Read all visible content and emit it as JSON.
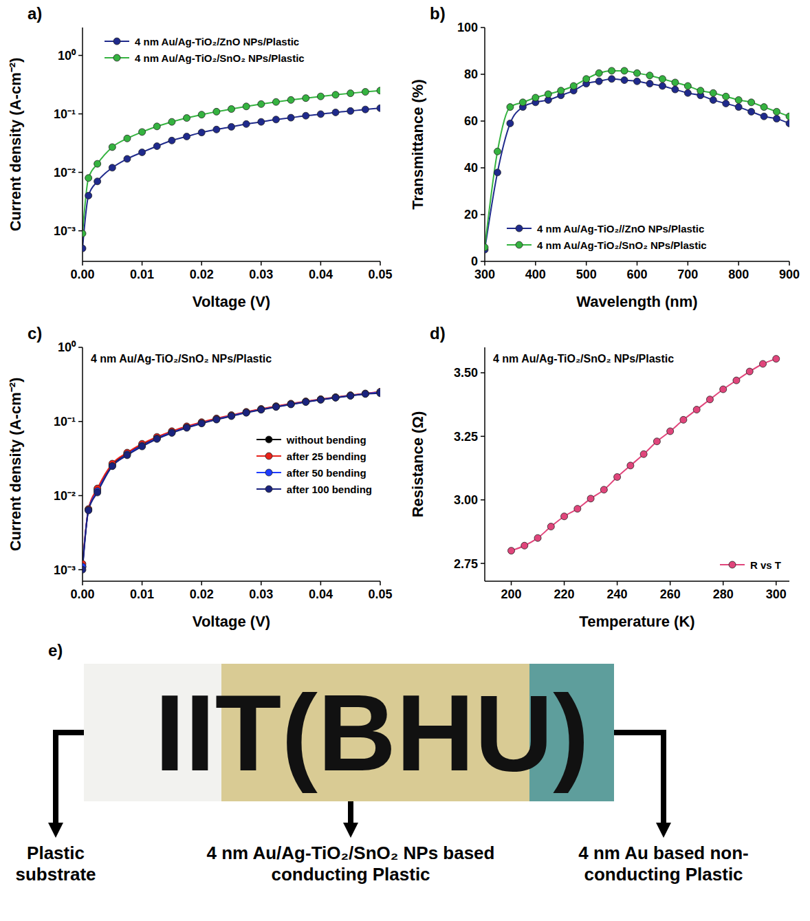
{
  "chart_data": [
    {
      "type": "line",
      "title": "a)",
      "xlabel": "Voltage (V)",
      "ylabel": "Current density (A-cm⁻²)",
      "log": "y",
      "legend": "upper left",
      "x": [
        0,
        0.001,
        0.0025,
        0.005,
        0.0075,
        0.01,
        0.0125,
        0.015,
        0.0175,
        0.02,
        0.0225,
        0.025,
        0.0275,
        0.03,
        0.0325,
        0.035,
        0.0375,
        0.04,
        0.0425,
        0.045,
        0.0475,
        0.05
      ],
      "series": [
        {
          "name": "4 nm Au/Ag-TiO₂/ZnO NPs/Plastic",
          "color": "#1f2a8c",
          "marker": "circle",
          "values": [
            0.0005,
            0.004,
            0.007,
            0.012,
            0.017,
            0.022,
            0.028,
            0.035,
            0.041,
            0.048,
            0.054,
            0.06,
            0.067,
            0.073,
            0.08,
            0.086,
            0.093,
            0.099,
            0.106,
            0.112,
            0.119,
            0.125
          ]
        },
        {
          "name": "4 nm Au/Ag-TiO₂/SnO₂ NPs/Plastic",
          "color": "#35b340",
          "marker": "circle",
          "values": [
            0.0009,
            0.008,
            0.014,
            0.027,
            0.038,
            0.049,
            0.061,
            0.073,
            0.085,
            0.097,
            0.109,
            0.121,
            0.134,
            0.147,
            0.16,
            0.173,
            0.186,
            0.199,
            0.212,
            0.225,
            0.238,
            0.25
          ]
        }
      ],
      "xlim": [
        0,
        0.05
      ],
      "xticks": [
        {
          "value": 0,
          "label": "0.00"
        },
        0.01,
        0.02,
        0.03,
        0.04,
        0.05
      ],
      "ylim": [
        0.0003,
        3
      ],
      "yticks": [
        {
          "value": 0.001,
          "label": "10⁻³"
        },
        {
          "value": 0.01,
          "label": "10⁻²"
        },
        {
          "value": 0.1,
          "label": "10⁻¹"
        },
        {
          "value": 1,
          "label": "10⁰"
        }
      ]
    },
    {
      "type": "line",
      "title": "b)",
      "xlabel": "Wavelength (nm)",
      "ylabel": "Transmittance (%)",
      "legend": "lower left",
      "x": [
        300,
        325,
        350,
        375,
        400,
        425,
        450,
        475,
        500,
        525,
        550,
        575,
        600,
        625,
        650,
        675,
        700,
        725,
        750,
        775,
        800,
        825,
        850,
        875,
        900
      ],
      "series": [
        {
          "name": "4 nm Au/Ag-TiO₂//ZnO NPs/Plastic",
          "color": "#1f2a8c",
          "marker": "circle",
          "values": [
            5,
            38,
            59,
            66,
            68,
            69,
            71,
            73,
            76,
            77,
            78,
            77.5,
            77,
            76,
            75,
            73.5,
            72,
            71,
            69,
            67.5,
            66,
            64,
            62,
            61,
            59
          ]
        },
        {
          "name": "4 nm Au/Ag-TiO₂/SnO₂ NPs/Plastic",
          "color": "#35b340",
          "marker": "circle",
          "values": [
            6,
            47,
            66,
            68,
            70,
            71.5,
            73,
            75,
            78,
            80.5,
            81.5,
            81.5,
            80.5,
            79.5,
            78,
            76.5,
            75,
            73,
            72,
            70.5,
            69,
            68,
            66,
            64,
            62
          ]
        }
      ],
      "xlim": [
        300,
        900
      ],
      "xticks": [
        300,
        400,
        500,
        600,
        700,
        800,
        900
      ],
      "ylim": [
        0,
        100
      ],
      "yticks": [
        0,
        20,
        40,
        60,
        80,
        100
      ]
    },
    {
      "type": "line",
      "title": "c)",
      "xlabel": "Voltage (V)",
      "ylabel": "Current density (A-cm⁻²)",
      "log": "y",
      "legend": "center right",
      "annotations": [
        "4 nm Au/Ag-TiO₂/SnO₂ NPs/Plastic"
      ],
      "x": [
        0,
        0.001,
        0.0025,
        0.005,
        0.0075,
        0.01,
        0.0125,
        0.015,
        0.0175,
        0.02,
        0.0225,
        0.025,
        0.0275,
        0.03,
        0.0325,
        0.035,
        0.0375,
        0.04,
        0.0425,
        0.045,
        0.0475,
        0.05
      ],
      "series": [
        {
          "name": "without bending",
          "color": "#000000",
          "marker": "circle",
          "values": [
            0.0011,
            0.0065,
            0.012,
            0.026,
            0.037,
            0.048,
            0.06,
            0.072,
            0.084,
            0.096,
            0.108,
            0.12,
            0.133,
            0.146,
            0.159,
            0.172,
            0.185,
            0.198,
            0.211,
            0.224,
            0.237,
            0.25
          ]
        },
        {
          "name": "after 25 bending",
          "color": "#e8221a",
          "marker": "circle",
          "values": [
            0.0012,
            0.0066,
            0.0125,
            0.027,
            0.038,
            0.05,
            0.062,
            0.074,
            0.086,
            0.098,
            0.11,
            0.122,
            0.135,
            0.148,
            0.161,
            0.174,
            0.187,
            0.2,
            0.213,
            0.226,
            0.239,
            0.252
          ]
        },
        {
          "name": "after 50 bending",
          "color": "#1e3cff",
          "marker": "circle",
          "values": [
            0.0011,
            0.0064,
            0.0115,
            0.025,
            0.036,
            0.047,
            0.059,
            0.071,
            0.083,
            0.095,
            0.107,
            0.119,
            0.132,
            0.145,
            0.158,
            0.171,
            0.184,
            0.197,
            0.21,
            0.223,
            0.236,
            0.248
          ]
        },
        {
          "name": "after 100 bending",
          "color": "#1a237e",
          "marker": "circle",
          "values": [
            0.001,
            0.0063,
            0.011,
            0.025,
            0.035,
            0.046,
            0.058,
            0.07,
            0.082,
            0.094,
            0.106,
            0.118,
            0.131,
            0.144,
            0.157,
            0.17,
            0.183,
            0.196,
            0.209,
            0.222,
            0.235,
            0.24
          ]
        }
      ],
      "xlim": [
        0,
        0.05
      ],
      "xticks": [
        {
          "value": 0,
          "label": "0.00"
        },
        0.01,
        0.02,
        0.03,
        0.04,
        0.05
      ],
      "ylim": [
        0.0007,
        1
      ],
      "yticks": [
        {
          "value": 0.001,
          "label": "10⁻³"
        },
        {
          "value": 0.01,
          "label": "10⁻²"
        },
        {
          "value": 0.1,
          "label": "10⁻¹"
        },
        {
          "value": 1,
          "label": "10⁰"
        }
      ]
    },
    {
      "type": "line",
      "title": "d)",
      "xlabel": "Temperature (K)",
      "ylabel": "Resistance (Ω)",
      "legend": "lower right",
      "annotations": [
        "4 nm Au/Ag-TiO₂/SnO₂ NPs/Plastic"
      ],
      "x": [
        200,
        205,
        210,
        215,
        220,
        225,
        230,
        235,
        240,
        245,
        250,
        255,
        260,
        265,
        270,
        275,
        280,
        285,
        290,
        295,
        300
      ],
      "series": [
        {
          "name": "R vs T",
          "color": "#e0457b",
          "marker": "circle",
          "values": [
            2.8,
            2.82,
            2.85,
            2.895,
            2.935,
            2.965,
            3.005,
            3.04,
            3.09,
            3.135,
            3.18,
            3.23,
            3.27,
            3.315,
            3.355,
            3.395,
            3.435,
            3.47,
            3.505,
            3.535,
            3.555
          ]
        }
      ],
      "xlim": [
        190,
        305
      ],
      "xticks": [
        200,
        220,
        240,
        260,
        280,
        300
      ],
      "ylim": [
        2.68,
        3.6
      ],
      "yticks": [
        {
          "value": 2.75,
          "label": "2.75"
        },
        {
          "value": 3,
          "label": "3.00"
        },
        {
          "value": 3.25,
          "label": "3.25"
        },
        {
          "value": 3.5,
          "label": "3.50"
        }
      ]
    }
  ],
  "photo": {
    "title": "e)",
    "text": "IIT(BHU)",
    "regions": [
      {
        "label": "Plastic substrate",
        "color": "#f2f2ef"
      },
      {
        "label": "4 nm Au/Ag-TiO₂/SnO₂ NPs based conducting Plastic",
        "color": "#d9cb94"
      },
      {
        "label": "4 nm Au based non-conducting Plastic",
        "color": "#5e9e9c"
      }
    ]
  }
}
